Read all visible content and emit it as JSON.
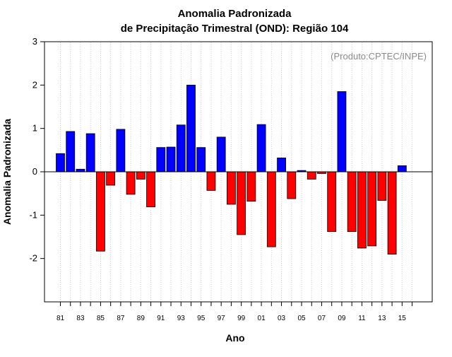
{
  "chart_data": {
    "type": "bar",
    "title": [
      "Anomalia Padronizada",
      "de Precipitação Trimestral (OND): Região 104"
    ],
    "xlabel": "Ano",
    "ylabel": "Anomalia Padronizada",
    "annotation": "(Produto:CPTEC/INPE)",
    "ylim": [
      -3,
      3
    ],
    "yticks": [
      3,
      2,
      1,
      0,
      -1,
      -2
    ],
    "xtick_labels": [
      "81",
      "83",
      "85",
      "87",
      "89",
      "91",
      "93",
      "95",
      "97",
      "99",
      "01",
      "03",
      "05",
      "07",
      "09",
      "11",
      "13",
      "15"
    ],
    "grid": "vertical dotted",
    "positive_color": "#0000ff",
    "negative_color": "#ff0000",
    "categories": [
      "1981",
      "1982",
      "1983",
      "1984",
      "1985",
      "1986",
      "1987",
      "1988",
      "1989",
      "1990",
      "1991",
      "1992",
      "1993",
      "1994",
      "1995",
      "1996",
      "1997",
      "1998",
      "1999",
      "2000",
      "2001",
      "2002",
      "2003",
      "2004",
      "2005",
      "2006",
      "2007",
      "2008",
      "2009",
      "2010",
      "2011",
      "2012",
      "2013",
      "2014",
      "2015"
    ],
    "values": [
      0.42,
      0.93,
      0.06,
      0.88,
      -1.83,
      -0.31,
      0.98,
      -0.52,
      -0.17,
      -0.81,
      0.56,
      0.57,
      1.08,
      2.0,
      0.56,
      -0.43,
      0.8,
      -0.75,
      -1.45,
      -0.68,
      1.09,
      -1.73,
      0.32,
      -0.62,
      0.03,
      -0.17,
      -0.04,
      -1.38,
      1.85,
      -1.38,
      -1.76,
      -1.71,
      -0.66,
      -1.9,
      0.14
    ]
  }
}
